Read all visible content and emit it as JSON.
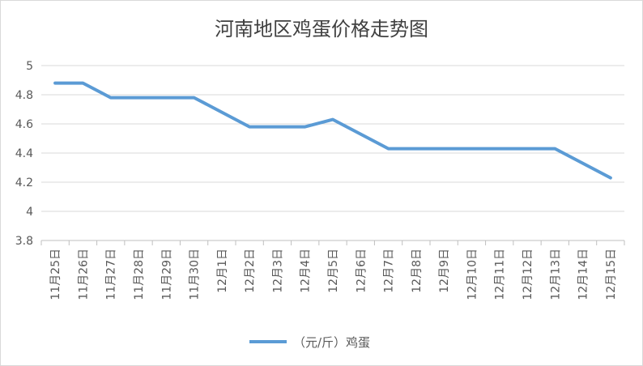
{
  "chart_data": {
    "type": "line",
    "title": "河南地区鸡蛋价格走势图",
    "categories": [
      "11月25日",
      "11月26日",
      "11月27日",
      "11月28日",
      "11月29日",
      "11月30日",
      "12月1日",
      "12月2日",
      "12月3日",
      "12月4日",
      "12月5日",
      "12月6日",
      "12月7日",
      "12月8日",
      "12月9日",
      "12月10日",
      "12月11日",
      "12月12日",
      "12月13日",
      "12月14日",
      "12月15日"
    ],
    "series": [
      {
        "name": "（元/斤）鸡蛋",
        "values": [
          4.88,
          4.88,
          4.78,
          4.78,
          4.78,
          4.78,
          null,
          4.58,
          4.58,
          4.58,
          4.63,
          null,
          4.43,
          4.43,
          4.43,
          4.43,
          4.43,
          4.43,
          4.43,
          null,
          4.23
        ]
      }
    ],
    "ylim": [
      3.8,
      5
    ],
    "yticks": [
      "3.8",
      "4",
      "4.2",
      "4.4",
      "4.6",
      "4.8",
      "5"
    ],
    "grid": true,
    "legend_position": "bottom",
    "colors": {
      "series": "#5b9bd5",
      "grid": "#d9d9d9",
      "axis": "#bfbfbf",
      "text": "#595959"
    }
  }
}
